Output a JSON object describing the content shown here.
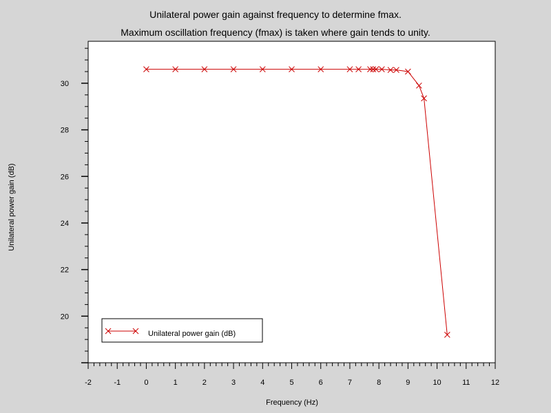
{
  "chart_data": {
    "type": "line",
    "title": "Unilateral power gain against frequency to determine fmax.",
    "subtitle": "Maximum oscillation frequency (fmax) is taken where gain tends to unity.",
    "xlabel": "Frequency (Hz)",
    "ylabel": "Unilateral power gain (dB)",
    "xlim": [
      -2,
      12
    ],
    "ylim": [
      18.0,
      31.8
    ],
    "x_ticks": [
      "-2",
      "-1",
      "0",
      "1",
      "2",
      "3",
      "4",
      "5",
      "6",
      "7",
      "8",
      "9",
      "10",
      "11",
      "12"
    ],
    "y_ticks": [
      "20",
      "22",
      "24",
      "26",
      "28",
      "30"
    ],
    "grid": false,
    "legend": {
      "position": "bottom-left",
      "marker": "x"
    },
    "series": [
      {
        "name": "Unilateral power gain (dB)",
        "color": "#cc0000",
        "marker": "x",
        "x": [
          0,
          1,
          2,
          3,
          4,
          5,
          6,
          7,
          7.3,
          7.7,
          7.8,
          7.9,
          8.1,
          8.4,
          8.6,
          9.0,
          9.38,
          9.55,
          10.35
        ],
        "y": [
          30.6,
          30.6,
          30.6,
          30.6,
          30.6,
          30.6,
          30.6,
          30.6,
          30.6,
          30.6,
          30.6,
          30.6,
          30.6,
          30.57,
          30.57,
          30.5,
          29.9,
          29.35,
          19.2
        ]
      }
    ]
  }
}
